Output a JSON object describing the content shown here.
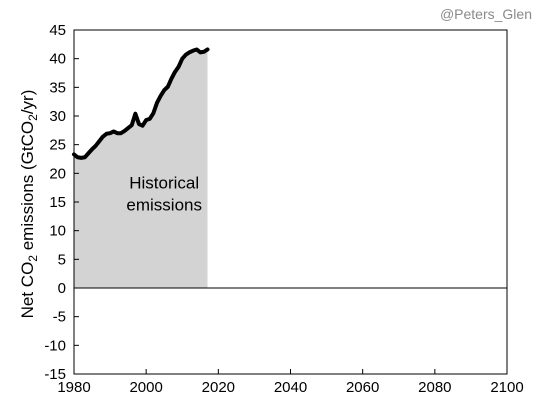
{
  "credit": "@Peters_Glen",
  "chart_data": {
    "type": "area",
    "title": "",
    "ylabel_parts": {
      "pre": "Net CO",
      "sub1": "2",
      "mid": " emissions (GtCO",
      "sub2": "2",
      "post": "/yr)"
    },
    "xlabel": "",
    "xlim": [
      1980,
      2100
    ],
    "ylim": [
      -15,
      45
    ],
    "x_ticks": [
      1980,
      2000,
      2020,
      2040,
      2060,
      2080,
      2100
    ],
    "y_ticks": [
      -15,
      -10,
      -5,
      0,
      5,
      10,
      15,
      20,
      25,
      30,
      35,
      40,
      45
    ],
    "grid": false,
    "series": [
      {
        "name": "",
        "color": "#000000",
        "fill": "#d3d3d3",
        "x": [
          1980,
          1981,
          1982,
          1983,
          1984,
          1985,
          1986,
          1987,
          1988,
          1989,
          1990,
          1991,
          1992,
          1993,
          1994,
          1995,
          1996,
          1997,
          1998,
          1999,
          2000,
          2001,
          2002,
          2003,
          2004,
          2005,
          2006,
          2007,
          2008,
          2009,
          2010,
          2011,
          2012,
          2013,
          2014,
          2015,
          2016,
          2017
        ],
        "y": [
          23.3,
          22.8,
          22.7,
          22.8,
          23.5,
          24.2,
          24.8,
          25.6,
          26.4,
          26.9,
          27.0,
          27.3,
          27.0,
          27.0,
          27.4,
          27.9,
          28.4,
          30.4,
          28.6,
          28.3,
          29.3,
          29.5,
          30.5,
          32.3,
          33.5,
          34.5,
          35.1,
          36.5,
          37.7,
          38.6,
          40.0,
          40.7,
          41.1,
          41.4,
          41.6,
          41.1,
          41.2,
          41.6
        ]
      }
    ],
    "annotations": [
      {
        "text": [
          "Historical",
          "emissions"
        ],
        "x": 2005,
        "y": 16.3
      }
    ],
    "zero_line": true
  }
}
